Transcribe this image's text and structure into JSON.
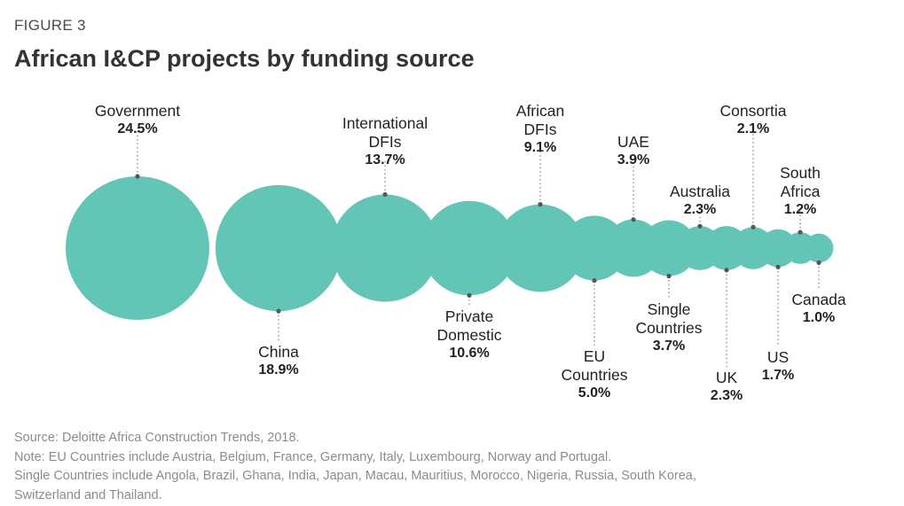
{
  "figure_label": "FIGURE 3",
  "chart_data": {
    "type": "bubble",
    "title": "African I&CP projects by funding source",
    "unit": "%",
    "series": [
      {
        "name_lines": [
          "Government"
        ],
        "value": 24.5,
        "value_label": "24.5%",
        "label_position": "above"
      },
      {
        "name_lines": [
          "China"
        ],
        "value": 18.9,
        "value_label": "18.9%",
        "label_position": "below"
      },
      {
        "name_lines": [
          "International",
          "DFIs"
        ],
        "value": 13.7,
        "value_label": "13.7%",
        "label_position": "above"
      },
      {
        "name_lines": [
          "Private",
          "Domestic"
        ],
        "value": 10.6,
        "value_label": "10.6%",
        "label_position": "below"
      },
      {
        "name_lines": [
          "African",
          "DFIs"
        ],
        "value": 9.1,
        "value_label": "9.1%",
        "label_position": "above"
      },
      {
        "name_lines": [
          "EU",
          "Countries"
        ],
        "value": 5.0,
        "value_label": "5.0%",
        "label_position": "below"
      },
      {
        "name_lines": [
          "UAE"
        ],
        "value": 3.9,
        "value_label": "3.9%",
        "label_position": "above"
      },
      {
        "name_lines": [
          "Single",
          "Countries"
        ],
        "value": 3.7,
        "value_label": "3.7%",
        "label_position": "below"
      },
      {
        "name_lines": [
          "Australia"
        ],
        "value": 2.3,
        "value_label": "2.3%",
        "label_position": "above"
      },
      {
        "name_lines": [
          "UK"
        ],
        "value": 2.3,
        "value_label": "2.3%",
        "label_position": "below"
      },
      {
        "name_lines": [
          "Consortia"
        ],
        "value": 2.1,
        "value_label": "2.1%",
        "label_position": "above"
      },
      {
        "name_lines": [
          "US"
        ],
        "value": 1.7,
        "value_label": "1.7%",
        "label_position": "below"
      },
      {
        "name_lines": [
          "South",
          "Africa"
        ],
        "value": 1.2,
        "value_label": "1.2%",
        "label_position": "above"
      },
      {
        "name_lines": [
          "Canada"
        ],
        "value": 1.0,
        "value_label": "1.0%",
        "label_position": "below"
      }
    ],
    "colors": {
      "bubble": "#63c5b5",
      "leader_line": "#8a8a8a",
      "dot": "#555555"
    }
  },
  "notes": [
    "Source: Deloitte Africa Construction Trends, 2018.",
    "Note: EU Countries include Austria, Belgium, France, Germany, Italy, Luxembourg, Norway and Portugal.",
    "Single Countries include Angola, Brazil, Ghana, India, Japan, Macau, Mauritius, Morocco, Nigeria, Russia, South Korea,",
    "Switzerland and Thailand."
  ]
}
